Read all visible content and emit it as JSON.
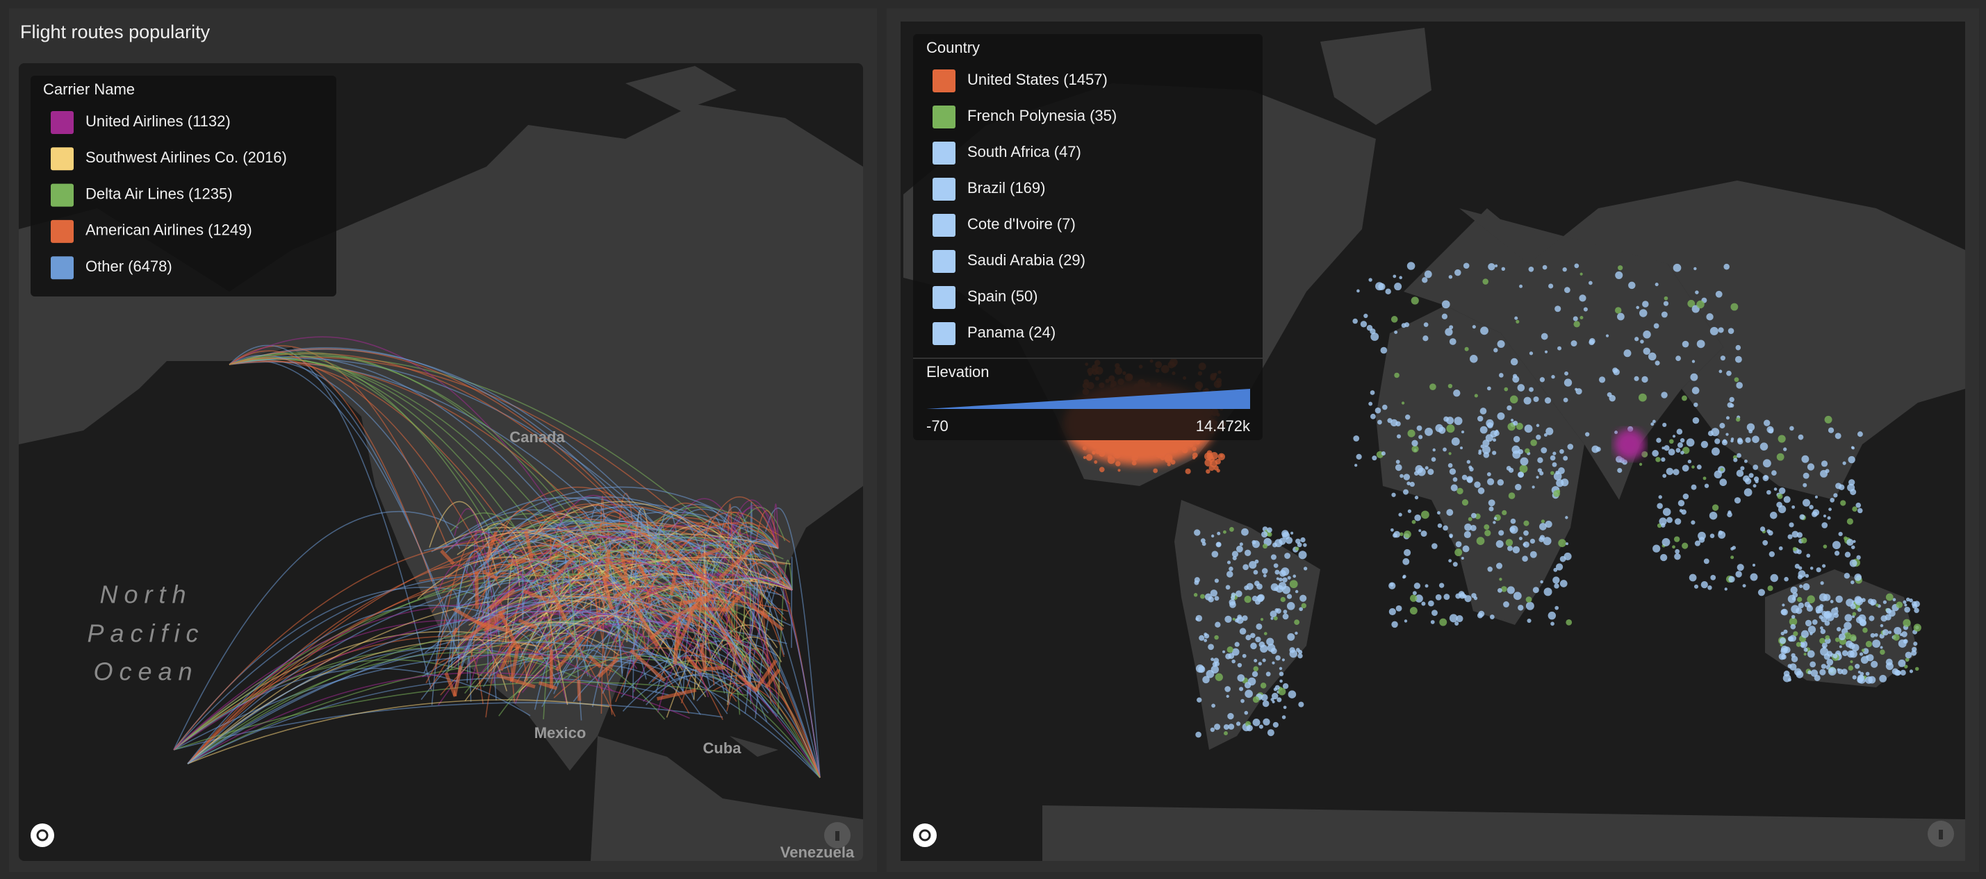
{
  "panels": [
    {
      "title": "Flight routes popularity",
      "legend": {
        "title": "Carrier Name",
        "items": [
          {
            "label": "United Airlines (1132)",
            "color": "#a0298f"
          },
          {
            "label": "Southwest Airlines Co. (2016)",
            "color": "#f5d27a"
          },
          {
            "label": "Delta Air Lines (1235)",
            "color": "#7ab35a"
          },
          {
            "label": "American Airlines (1249)",
            "color": "#e0683c"
          },
          {
            "label": "Other (6478)",
            "color": "#6d9bd6"
          }
        ]
      },
      "map_labels": {
        "canada": "Canada",
        "ocean": [
          "North",
          "Pacific",
          "Ocean"
        ],
        "mexico": "Mexico",
        "cuba": "Cuba",
        "venezuela": "Venezuela"
      }
    },
    {
      "legend": {
        "title": "Country",
        "items": [
          {
            "label": "United States (1457)",
            "color": "#e0683c"
          },
          {
            "label": "French Polynesia (35)",
            "color": "#7ab35a"
          },
          {
            "label": "South Africa (47)",
            "color": "#a8cdf5"
          },
          {
            "label": "Brazil (169)",
            "color": "#a8cdf5"
          },
          {
            "label": "Cote d'Ivoire (7)",
            "color": "#a8cdf5"
          },
          {
            "label": "Saudi Arabia (29)",
            "color": "#a8cdf5"
          },
          {
            "label": "Spain (50)",
            "color": "#a8cdf5"
          },
          {
            "label": "Panama (24)",
            "color": "#a8cdf5"
          }
        ]
      },
      "scale": {
        "title": "Elevation",
        "min": "-70",
        "max": "14.472k",
        "color": "#4a7fd6"
      }
    }
  ]
}
